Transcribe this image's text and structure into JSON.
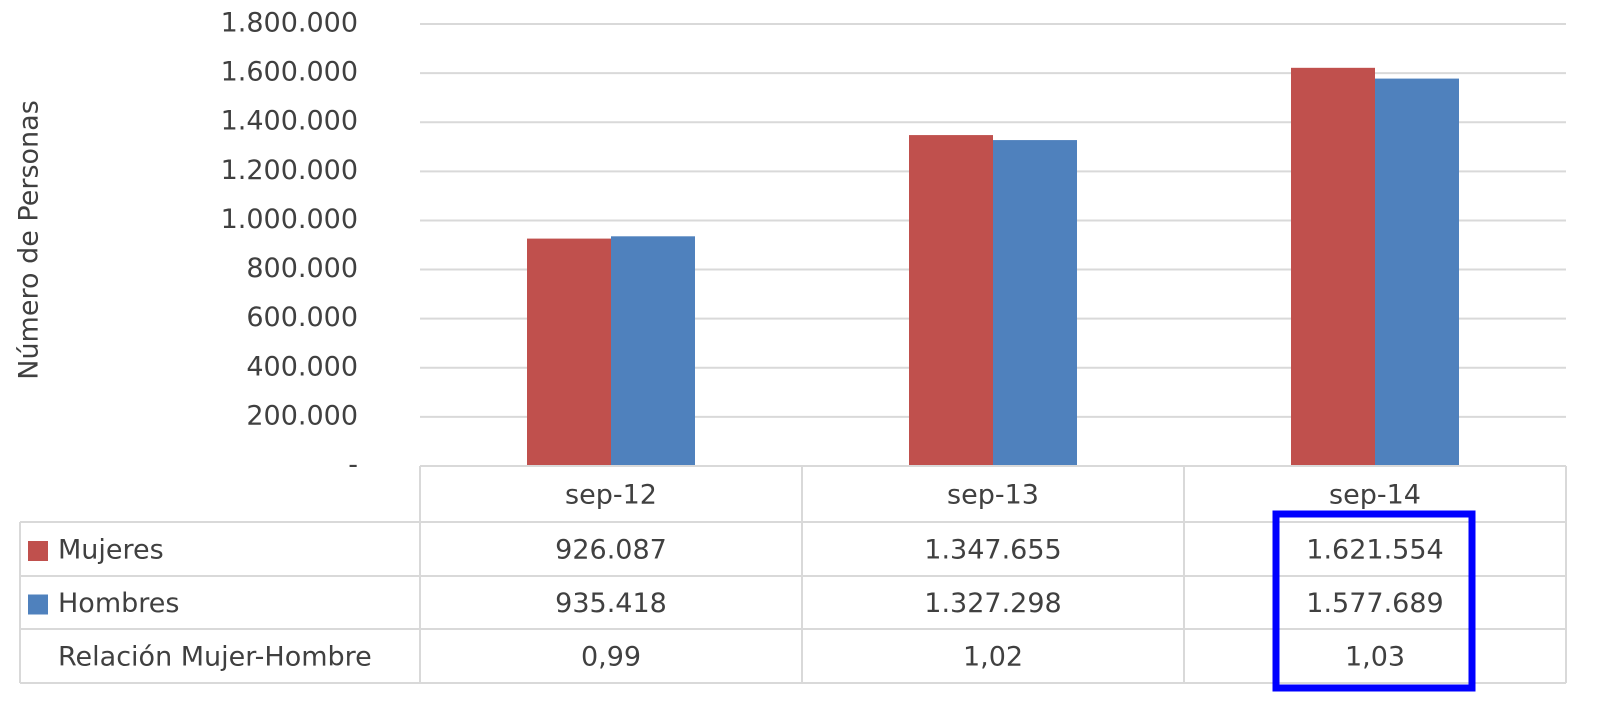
{
  "chart_data": {
    "type": "bar",
    "y_label": "Número de Personas",
    "categories": [
      "sep-12",
      "sep-13",
      "sep-14"
    ],
    "series": [
      {
        "name": "Mujeres",
        "color": "#c0504d",
        "values": [
          926087,
          1347655,
          1621554
        ],
        "value_labels": [
          "926.087",
          "1.347.655",
          "1.621.554"
        ]
      },
      {
        "name": "Hombres",
        "color": "#4f81bd",
        "values": [
          935418,
          1327298,
          1577689
        ],
        "value_labels": [
          "935.418",
          "1.327.298",
          "1.577.689"
        ]
      }
    ],
    "table_row": {
      "name": "Relación Mujer-Hombre",
      "values": [
        0.99,
        1.02,
        1.03
      ],
      "value_labels": [
        "0,99",
        "1,02",
        "1,03"
      ]
    },
    "ylim": [
      0,
      1800000
    ],
    "yticks": [
      {
        "value": 0,
        "label": "-"
      },
      {
        "value": 200000,
        "label": "200.000"
      },
      {
        "value": 400000,
        "label": "400.000"
      },
      {
        "value": 600000,
        "label": "600.000"
      },
      {
        "value": 800000,
        "label": "800.000"
      },
      {
        "value": 1000000,
        "label": "1.000.000"
      },
      {
        "value": 1200000,
        "label": "1.200.000"
      },
      {
        "value": 1400000,
        "label": "1.400.000"
      },
      {
        "value": 1600000,
        "label": "1.600.000"
      },
      {
        "value": 1800000,
        "label": "1.800.000"
      }
    ],
    "grid": true
  }
}
